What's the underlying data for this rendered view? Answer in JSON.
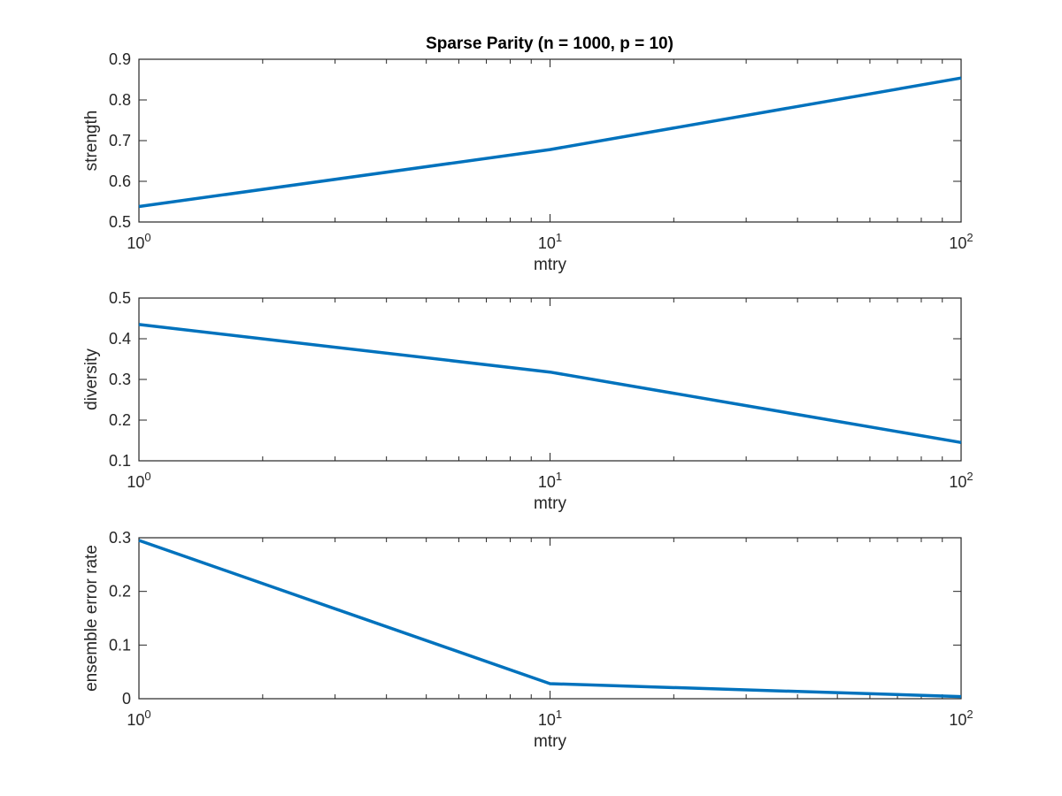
{
  "figure": {
    "title": "Sparse Parity (n = 1000, p = 10)"
  },
  "chart_data": [
    {
      "type": "line",
      "title": "Sparse Parity (n = 1000, p = 10)",
      "xlabel": "mtry",
      "ylabel": "strength",
      "xscale": "log",
      "xlim": [
        1,
        100
      ],
      "ylim": [
        0.5,
        0.9
      ],
      "xticks": [
        {
          "base": "10",
          "exp": "0"
        },
        {
          "base": "10",
          "exp": "1"
        },
        {
          "base": "10",
          "exp": "2"
        }
      ],
      "yticks": [
        "0.5",
        "0.6",
        "0.7",
        "0.8",
        "0.9"
      ],
      "grid": false,
      "color": "#0072BD",
      "x": [
        1,
        10,
        100
      ],
      "y": [
        0.538,
        0.678,
        0.854
      ]
    },
    {
      "type": "line",
      "title": "",
      "xlabel": "mtry",
      "ylabel": "diversity",
      "xscale": "log",
      "xlim": [
        1,
        100
      ],
      "ylim": [
        0.1,
        0.5
      ],
      "xticks": [
        {
          "base": "10",
          "exp": "0"
        },
        {
          "base": "10",
          "exp": "1"
        },
        {
          "base": "10",
          "exp": "2"
        }
      ],
      "yticks": [
        "0.1",
        "0.2",
        "0.3",
        "0.4",
        "0.5"
      ],
      "grid": false,
      "color": "#0072BD",
      "x": [
        1,
        10,
        100
      ],
      "y": [
        0.435,
        0.318,
        0.145
      ]
    },
    {
      "type": "line",
      "title": "",
      "xlabel": "mtry",
      "ylabel": "ensemble error rate",
      "xscale": "log",
      "xlim": [
        1,
        100
      ],
      "ylim": [
        0,
        0.3
      ],
      "xticks": [
        {
          "base": "10",
          "exp": "0"
        },
        {
          "base": "10",
          "exp": "1"
        },
        {
          "base": "10",
          "exp": "2"
        }
      ],
      "yticks": [
        "0",
        "0.1",
        "0.2",
        "0.3"
      ],
      "grid": false,
      "color": "#0072BD",
      "x": [
        1,
        10,
        100
      ],
      "y": [
        0.295,
        0.028,
        0.004
      ]
    }
  ]
}
